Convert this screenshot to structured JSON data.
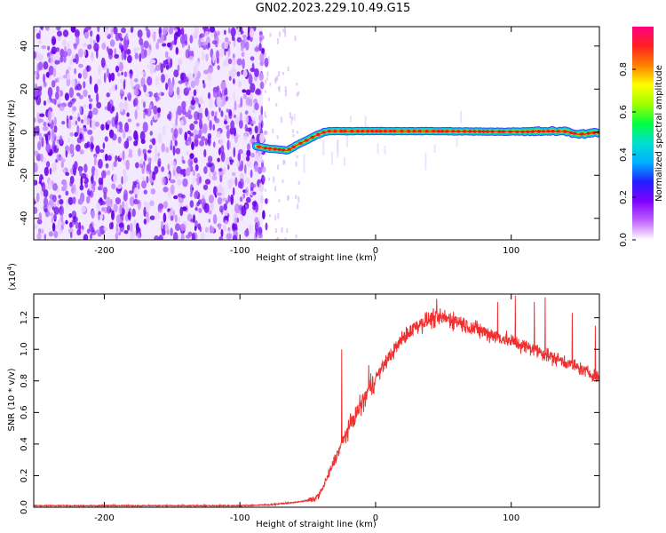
{
  "title": "GN02.2023.229.10.49.G15",
  "colors": {
    "snr_line": "#f03030",
    "axis": "#000000"
  },
  "chart_data": [
    {
      "type": "heatmap",
      "name": "spectrogram",
      "xlabel": "Height of straight line (km)",
      "ylabel": "Frequency (Hz)",
      "xlim": [
        -252,
        165
      ],
      "ylim": [
        -50,
        49
      ],
      "xticks": [
        -200,
        -100,
        0,
        100
      ],
      "yticks": [
        -40,
        -20,
        0,
        20,
        40
      ],
      "colorbar": {
        "label": "Normalized spectral amplitude",
        "range": [
          0.0,
          1.0
        ],
        "ticks": [
          "0.0",
          "0.2",
          "0.4",
          "0.6",
          "0.8"
        ],
        "colormap": [
          "#ffffff",
          "#c060ff",
          "#8000ff",
          "#2020ff",
          "#00b0ff",
          "#00e0d0",
          "#00ff40",
          "#a0ff00",
          "#ffff00",
          "#ff8000",
          "#ff2020",
          "#ff0080"
        ]
      },
      "noise_region_end_km": -83,
      "signal_ridge": {
        "x": [
          -88,
          -80,
          -72,
          -65,
          -58,
          -50,
          -44,
          -38,
          -34,
          -30,
          0,
          40,
          80,
          110,
          130,
          140,
          150,
          165
        ],
        "y": [
          -6.5,
          -7.5,
          -8,
          -8.5,
          -6,
          -3.5,
          -1.5,
          0,
          0.5,
          0.5,
          0.5,
          0.5,
          0.3,
          0.2,
          0.5,
          0.3,
          -1,
          0
        ]
      }
    },
    {
      "type": "line",
      "name": "snr",
      "xlabel": "Height of straight line (km)",
      "ylabel": "SNR (10 * v/v)",
      "y_multiplier": "(x10",
      "y_multiplier_exp": "4",
      "y_multiplier_close": ")",
      "xlim": [
        -252,
        165
      ],
      "ylim": [
        0,
        1.35
      ],
      "xticks": [
        -200,
        -100,
        0,
        100
      ],
      "yticks": [
        "0.0",
        "0.2",
        "0.4",
        "0.6",
        "0.8",
        "1.0",
        "1.2"
      ],
      "series": [
        {
          "x": [
            -252,
            -200,
            -150,
            -100,
            -80,
            -60,
            -45,
            -40,
            -35,
            -30,
            -25,
            -20,
            -15,
            -10,
            -5,
            0,
            10,
            20,
            30,
            40,
            50,
            60,
            70,
            80,
            90,
            100,
            110,
            120,
            130,
            140,
            150,
            165
          ],
          "y": [
            0.01,
            0.01,
            0.01,
            0.01,
            0.015,
            0.03,
            0.05,
            0.1,
            0.2,
            0.3,
            0.4,
            0.5,
            0.58,
            0.66,
            0.74,
            0.82,
            0.95,
            1.07,
            1.15,
            1.19,
            1.2,
            1.18,
            1.14,
            1.11,
            1.08,
            1.05,
            1.02,
            0.99,
            0.95,
            0.92,
            0.88,
            0.82
          ],
          "spikes": [
            {
              "x": -25,
              "y": 1.0
            },
            {
              "x": -5,
              "y": 0.9
            },
            {
              "x": 45,
              "y": 1.32
            },
            {
              "x": 90,
              "y": 1.3
            },
            {
              "x": 103,
              "y": 1.34
            },
            {
              "x": 117,
              "y": 1.3
            },
            {
              "x": 125,
              "y": 1.33
            },
            {
              "x": 145,
              "y": 1.23
            },
            {
              "x": 162,
              "y": 1.15
            }
          ]
        }
      ]
    }
  ]
}
